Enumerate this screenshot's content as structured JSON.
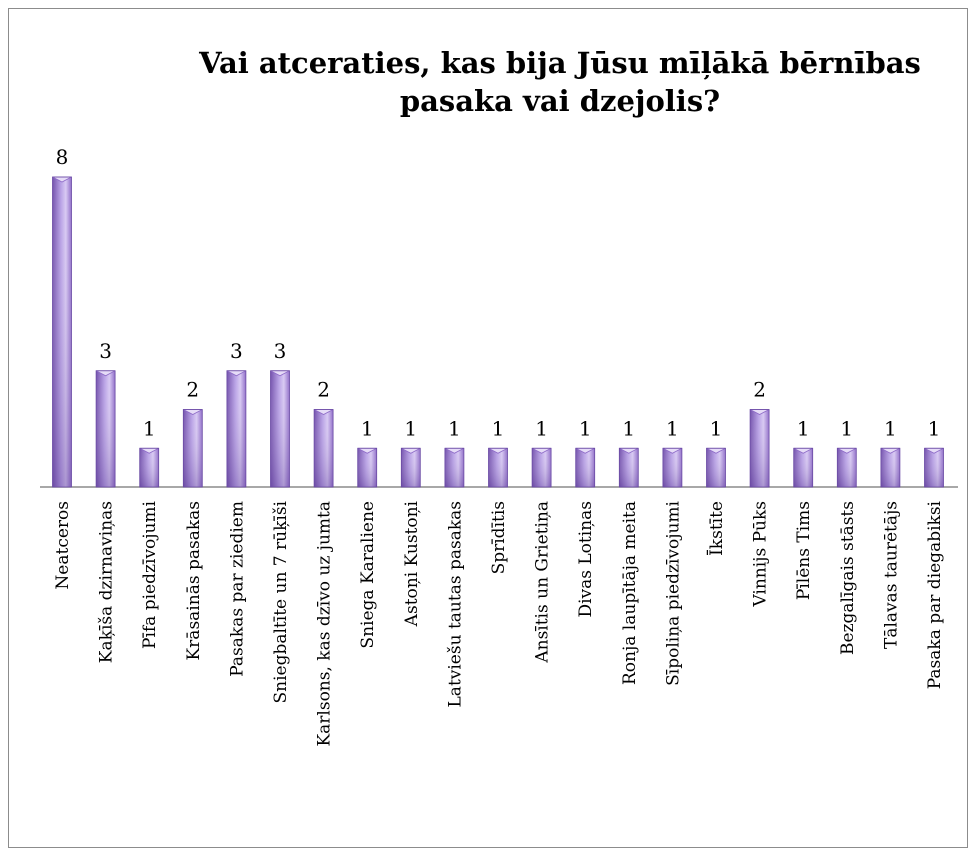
{
  "chart_data": {
    "type": "bar",
    "title": "Vai atceraties, kas bija Jūsu mīļākā bērnības pasaka vai dzejolis?",
    "categories": [
      "Neatceros",
      "Kaķīša dzirnaviņas",
      "Pīfa piedzīvojumi",
      "Krāsainās pasakas",
      "Pasakas par ziediem",
      "Sniegbaltīte un 7 rūķīši",
      "Karlsons, kas dzīvo uz jumta",
      "Sniega Karaliene",
      "Astoņi Kustoņi",
      "Latviešu tautas pasakas",
      "Sprīdītis",
      "Ansītis un Grietiņa",
      "Divas Lotiņas",
      "Ronja laupītāja meita",
      "Sīpoliņa piedzīvojumi",
      "Īkstīte",
      "Vinnijs Pūks",
      "Pīlēns Tims",
      "Bezgalīgais stāsts",
      "Tālavas taurētājs",
      "Pasaka par diegabiksi"
    ],
    "values": [
      8,
      3,
      1,
      2,
      3,
      3,
      2,
      1,
      1,
      1,
      1,
      1,
      1,
      1,
      1,
      1,
      2,
      1,
      1,
      1,
      1
    ],
    "data_labels": true,
    "ylim": [
      0,
      8
    ],
    "grid": false,
    "legend": "none",
    "colors": {
      "bar_light": "#c9b6ee",
      "bar_dark": "#7452ad",
      "bar_top": "#e6dcf7",
      "axis": "#8c8c8c"
    }
  }
}
